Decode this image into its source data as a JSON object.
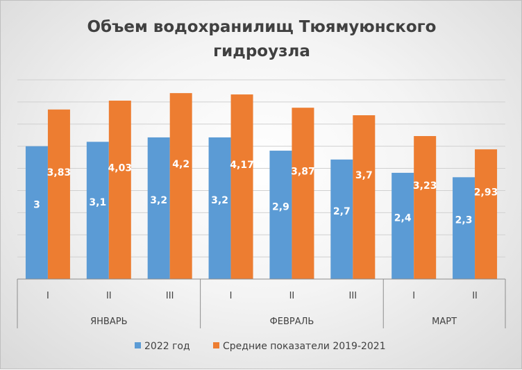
{
  "chart_data": {
    "type": "bar",
    "title_lines": [
      "Объем водохранилищ Тюямуюнского",
      "гидроузла"
    ],
    "categories": [
      "I",
      "II",
      "III",
      "I",
      "II",
      "III",
      "I",
      "II"
    ],
    "groups": [
      {
        "label": "ЯНВАРЬ",
        "count": 3
      },
      {
        "label": "ФЕВРАЛЬ",
        "count": 3
      },
      {
        "label": "МАРТ",
        "count": 2
      }
    ],
    "series": [
      {
        "name": "2022 год",
        "color": "#5b9bd5",
        "values": [
          3,
          3.1,
          3.2,
          3.2,
          2.9,
          2.7,
          2.4,
          2.3
        ],
        "labels": [
          "3",
          "3,1",
          "3,2",
          "3,2",
          "2,9",
          "2,7",
          "2,4",
          "2,3"
        ]
      },
      {
        "name": "Средние показатели 2019-2021",
        "color": "#ed7d31",
        "values": [
          3.83,
          4.03,
          4.2,
          4.17,
          3.87,
          3.7,
          3.23,
          2.93
        ],
        "labels": [
          "3,83",
          "4,03",
          "4,2",
          "4,17",
          "3,87",
          "3,7",
          "3,23",
          "2,93"
        ]
      }
    ],
    "ylim": [
      0,
      4.5
    ],
    "grid": true,
    "y_axis_labels_shown": false,
    "legend_position": "bottom"
  }
}
